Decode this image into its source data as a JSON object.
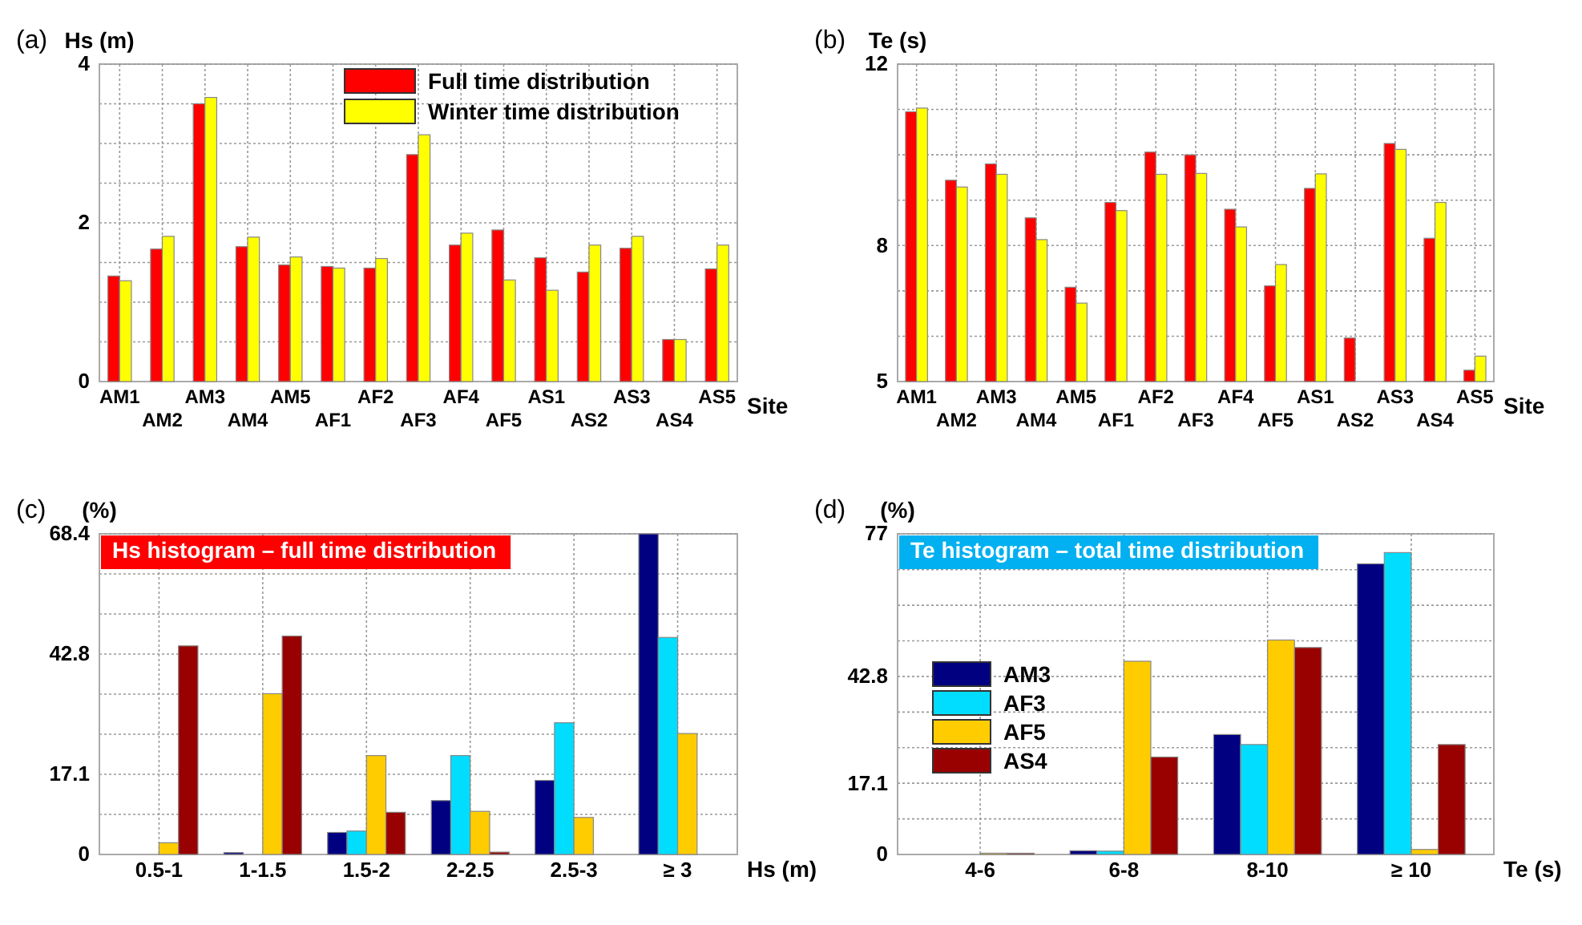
{
  "chart_data": [
    {
      "type": "bar",
      "annotations": [
        "(a)"
      ],
      "ylabel": "Hs (m)",
      "xlabel": "Site",
      "categories": [
        "AM1",
        "AM2",
        "AM3",
        "AM4",
        "AM5",
        "AF1",
        "AF2",
        "AF3",
        "AF4",
        "AF5",
        "AS1",
        "AS2",
        "AS3",
        "AS4",
        "AS5"
      ],
      "series": [
        {
          "name": "Full time distribution",
          "color": "#ff0000",
          "values": [
            1.33,
            1.67,
            3.5,
            1.7,
            1.47,
            1.45,
            1.43,
            2.86,
            1.72,
            1.91,
            1.56,
            1.38,
            1.68,
            0.53,
            1.42
          ]
        },
        {
          "name": "Winter time distribution",
          "color": "#ffff00",
          "values": [
            1.27,
            1.83,
            3.58,
            1.82,
            1.57,
            1.43,
            1.55,
            3.11,
            1.87,
            1.28,
            1.15,
            1.72,
            1.83,
            0.53,
            1.72
          ]
        }
      ],
      "ylim": [
        0,
        4
      ],
      "yticks": [
        0,
        {
          "value": 0.5,
          "label": null
        },
        {
          "value": 1,
          "label": null
        },
        {
          "value": 1.5,
          "label": null
        },
        2,
        {
          "value": 2.5,
          "label": null
        },
        {
          "value": 3,
          "label": null
        },
        {
          "value": 3.5,
          "label": null
        },
        4
      ],
      "grid": true,
      "legend": "top right"
    },
    {
      "type": "bar",
      "annotations": [
        "(b)"
      ],
      "ylabel": "Te (s)",
      "xlabel": "Site",
      "categories": [
        "AM1",
        "AM2",
        "AM3",
        "AM4",
        "AM5",
        "AF1",
        "AF2",
        "AF3",
        "AF4",
        "AF5",
        "AS1",
        "AS2",
        "AS3",
        "AS4",
        "AS5"
      ],
      "series": [
        {
          "color": "#ff0000",
          "values": [
            10.95,
            9.44,
            9.8,
            8.61,
            7.08,
            8.95,
            10.06,
            10.0,
            8.8,
            7.11,
            9.26,
            5.96,
            10.25,
            8.16,
            5.25
          ]
        },
        {
          "color": "#ffff00",
          "values": [
            11.03,
            9.29,
            9.57,
            8.13,
            6.73,
            8.77,
            9.57,
            9.59,
            8.41,
            7.58,
            9.58,
            null,
            10.12,
            8.95,
            5.56
          ]
        }
      ],
      "ylim": [
        5,
        12
      ],
      "yticks": [
        5,
        {
          "value": 6,
          "label": null
        },
        {
          "value": 7,
          "label": null
        },
        8,
        {
          "value": 9,
          "label": null
        },
        {
          "value": 10,
          "label": null
        },
        {
          "value": 11,
          "label": null
        },
        12
      ],
      "grid": true
    },
    {
      "type": "bar",
      "annotations": [
        "(c)"
      ],
      "title": "Hs histogram – full time distribution",
      "ylabel": "(%)",
      "xlabel": "Hs (m)",
      "categories": [
        "0.5-1",
        "1-1.5",
        "1.5-2",
        "2-2.5",
        "2.5-3",
        "≥ 3"
      ],
      "series": [
        {
          "color": "#000080",
          "values": [
            0,
            0.4,
            4.7,
            11.5,
            15.8,
            68.4
          ]
        },
        {
          "color": "#00ddff",
          "values": [
            0,
            0,
            5.0,
            21.1,
            28.1,
            46.3
          ]
        },
        {
          "color": "#ffcc00",
          "values": [
            2.5,
            34.3,
            21.1,
            9.2,
            7.9,
            25.8
          ]
        },
        {
          "color": "#990000",
          "values": [
            44.5,
            46.6,
            9.0,
            0.5,
            0,
            null
          ]
        }
      ],
      "ylim": [
        0,
        68.4
      ],
      "yticks": [
        0,
        {
          "value": 8.55,
          "label": null
        },
        17.1,
        {
          "value": 25.65,
          "label": null
        },
        {
          "value": 34.2,
          "label": null
        },
        {
          "value": 42.75,
          "label": "42.8"
        },
        {
          "value": 51.3,
          "label": null
        },
        {
          "value": 59.85,
          "label": null
        },
        68.4
      ],
      "grid": true
    },
    {
      "type": "bar",
      "annotations": [
        "(d)"
      ],
      "title": "Te histogram – total time distribution",
      "ylabel": "(%)",
      "xlabel": "Te (s)",
      "categories": [
        "4-6",
        "6-8",
        "8-10",
        "≥ 10"
      ],
      "series": [
        {
          "name": "AM3",
          "color": "#000080",
          "values": [
            0,
            0.9,
            28.8,
            69.8
          ]
        },
        {
          "name": "AF3",
          "color": "#00ddff",
          "values": [
            0,
            0.8,
            26.4,
            72.5
          ]
        },
        {
          "name": "AF5",
          "color": "#ffcc00",
          "values": [
            0.3,
            46.4,
            51.5,
            1.2
          ]
        },
        {
          "name": "AS4",
          "color": "#990000",
          "values": [
            0.3,
            23.4,
            49.7,
            26.4
          ]
        }
      ],
      "ylim": [
        0,
        77
      ],
      "yticks": [
        0,
        {
          "value": 8.55,
          "label": null
        },
        17.1,
        {
          "value": 25.65,
          "label": null
        },
        {
          "value": 34.2,
          "label": null
        },
        {
          "value": 42.75,
          "label": "42.8"
        },
        {
          "value": 51.3,
          "label": null
        },
        {
          "value": 59.85,
          "label": null
        },
        {
          "value": 68.4,
          "label": null
        },
        77
      ],
      "grid": true,
      "legend": "left"
    }
  ]
}
